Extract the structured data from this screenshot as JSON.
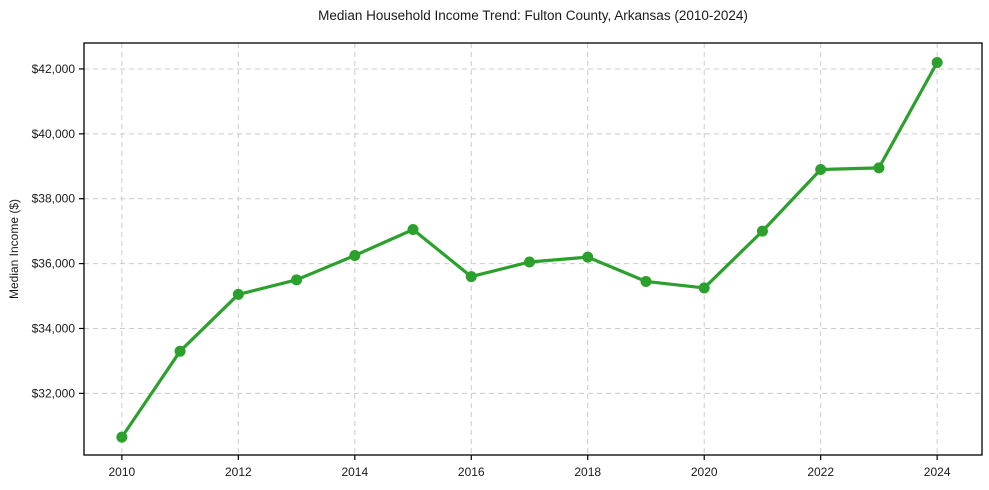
{
  "chart_data": {
    "type": "line",
    "title": "Median Household Income Trend: Fulton County, Arkansas (2010-2024)",
    "xlabel": "",
    "ylabel": "Median Income ($)",
    "x": [
      2010,
      2011,
      2012,
      2013,
      2014,
      2015,
      2016,
      2017,
      2018,
      2019,
      2020,
      2021,
      2022,
      2023,
      2024
    ],
    "values": [
      30650,
      33300,
      35050,
      35500,
      36250,
      37050,
      35600,
      36050,
      36200,
      35450,
      35250,
      37000,
      38900,
      38950,
      42200
    ],
    "x_ticks": [
      2010,
      2012,
      2014,
      2016,
      2018,
      2020,
      2022,
      2024
    ],
    "x_tick_labels": [
      "2010",
      "2012",
      "2014",
      "2016",
      "2018",
      "2020",
      "2022",
      "2024"
    ],
    "y_ticks": [
      32000,
      34000,
      36000,
      38000,
      40000,
      42000
    ],
    "y_tick_labels": [
      "$32,000",
      "$34,000",
      "$36,000",
      "$38,000",
      "$40,000",
      "$42,000"
    ],
    "xlim": [
      2009.35,
      2024.77
    ],
    "ylim": [
      30100,
      42800
    ],
    "grid": true,
    "grid_style": "dashed",
    "legend": "none",
    "marker": "circle",
    "colors": {
      "line": "#2ca02c",
      "grid": "#cccccc",
      "axis": "#000000",
      "text": "#1a1a1a",
      "background": "#ffffff"
    }
  }
}
